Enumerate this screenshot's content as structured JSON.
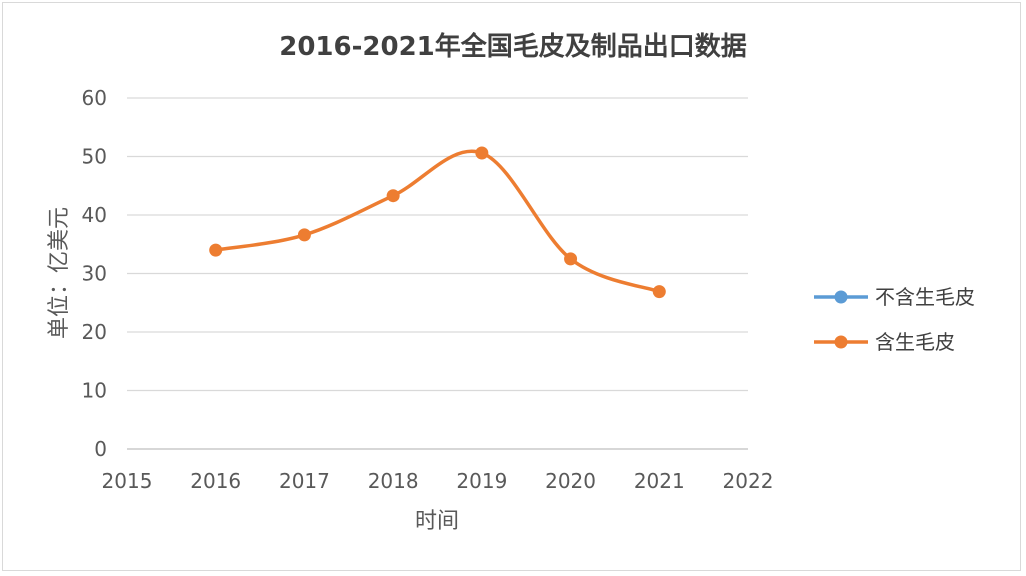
{
  "chart_data": {
    "type": "line",
    "title": "2016-2021年全国毛皮及制品出口数据",
    "xlabel": "时间",
    "ylabel": "单位：亿美元",
    "xlim": [
      2015,
      2022
    ],
    "ylim": [
      0,
      60
    ],
    "x_ticks": [
      2015,
      2016,
      2017,
      2018,
      2019,
      2020,
      2021,
      2022
    ],
    "y_ticks": [
      0,
      10,
      20,
      30,
      40,
      50,
      60
    ],
    "grid": "horizontal",
    "smooth": true,
    "legend_position": "right",
    "series": [
      {
        "name": "不含生毛皮",
        "color": "#5b9bd5",
        "x": [],
        "y": []
      },
      {
        "name": "含生毛皮",
        "color": "#ed7d31",
        "x": [
          2016,
          2017,
          2018,
          2019,
          2020,
          2021
        ],
        "y": [
          34.0,
          36.6,
          43.3,
          50.6,
          32.5,
          26.9
        ]
      }
    ]
  }
}
